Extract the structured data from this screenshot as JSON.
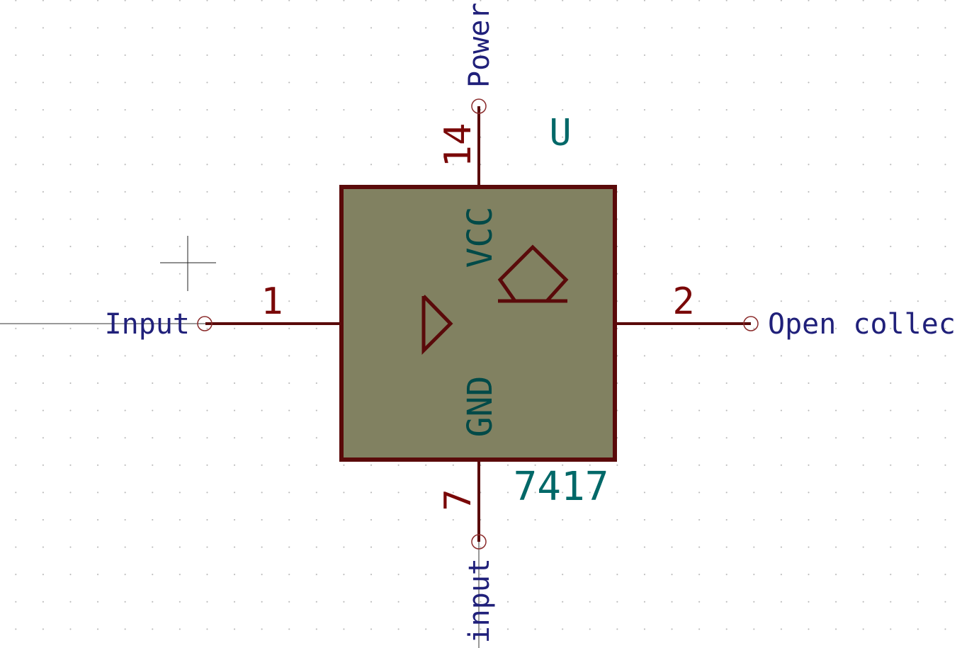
{
  "colors": {
    "body_fill": "#818161",
    "outline": "#5a0a0a",
    "pin_number": "#7a0808",
    "pin_name": "#004a48",
    "field": "#006868",
    "net_label": "#20207a",
    "crosshair": "#222222",
    "pin_end": "#8a2a2a"
  },
  "component": {
    "reference": "U",
    "value": "7417",
    "symbol": "open-collector-buffer"
  },
  "pins": {
    "input": {
      "number": "1",
      "net": "Input"
    },
    "output": {
      "number": "2",
      "net": "Open collector"
    },
    "power": {
      "number": "14",
      "name": "VCC",
      "net": "Power"
    },
    "ground": {
      "number": "7",
      "name": "GND",
      "net": "input"
    }
  }
}
